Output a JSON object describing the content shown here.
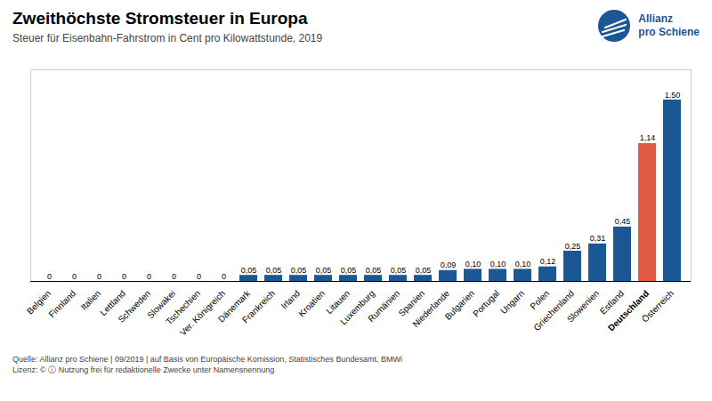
{
  "chart_data": {
    "type": "bar",
    "title": "Zweithöchste Stromsteuer in Europa",
    "subtitle": "Steuer für Eisenbahn-Fahrstrom in Cent pro Kilowattstunde, 2019",
    "categories": [
      "Belgien",
      "Finnland",
      "Italien",
      "Lettland",
      "Schweden",
      "Slowakei",
      "Tschechien",
      "Ver. Königreich",
      "Dänemark",
      "Frankreich",
      "Irland",
      "Kroatien",
      "Litauen",
      "Luxemburg",
      "Rumänien",
      "Spanien",
      "Niederlande",
      "Bulgarien",
      "Portugal",
      "Ungarn",
      "Polen",
      "Griechenland",
      "Slowenien",
      "Estland",
      "Deutschland",
      "Österreich"
    ],
    "values": [
      0,
      0,
      0,
      0,
      0,
      0,
      0,
      0,
      0.05,
      0.05,
      0.05,
      0.05,
      0.05,
      0.05,
      0.05,
      0.05,
      0.09,
      0.1,
      0.1,
      0.1,
      0.12,
      0.25,
      0.31,
      0.45,
      1.14,
      1.5
    ],
    "value_labels": [
      "0",
      "0",
      "0",
      "0",
      "0",
      "0",
      "0",
      "0",
      "0,05",
      "0,05",
      "0,05",
      "0,05",
      "0,05",
      "0,05",
      "0,05",
      "0,05",
      "0,09",
      "0,10",
      "0,10",
      "0,10",
      "0,12",
      "0,25",
      "0,31",
      "0,45",
      "1,14",
      "1,50"
    ],
    "colors": [
      "#1a5794",
      "#1a5794",
      "#1a5794",
      "#1a5794",
      "#1a5794",
      "#1a5794",
      "#1a5794",
      "#1a5794",
      "#1a5794",
      "#1a5794",
      "#1a5794",
      "#1a5794",
      "#1a5794",
      "#1a5794",
      "#1a5794",
      "#1a5794",
      "#1a5794",
      "#1a5794",
      "#1a5794",
      "#1a5794",
      "#1a5794",
      "#1a5794",
      "#1a5794",
      "#1a5794",
      "#e05a44",
      "#1a5794"
    ],
    "ylim": [
      0,
      1.75
    ],
    "data_labels": true,
    "tick_labels": "x",
    "annotations": [
      "Allianz",
      "pro Schiene"
    ],
    "caption": [
      "Quelle:  Allianz pro Schiene | 09/2019 | auf Basis von Europäische Komission, Statistisches Bundesamt, BMWi",
      "Lizenz:  © ⓘ  Nutzung frei für redaktionelle Zwecke unter Namensnennung"
    ]
  }
}
